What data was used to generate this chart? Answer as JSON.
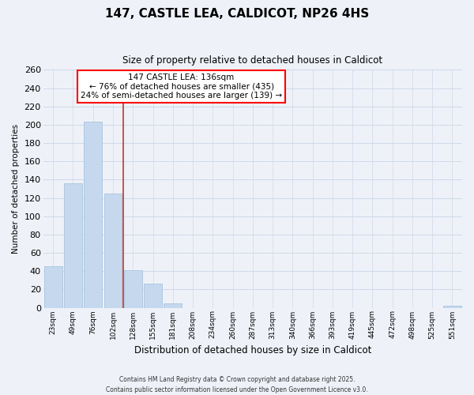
{
  "title": "147, CASTLE LEA, CALDICOT, NP26 4HS",
  "subtitle": "Size of property relative to detached houses in Caldicot",
  "xlabel": "Distribution of detached houses by size in Caldicot",
  "ylabel": "Number of detached properties",
  "bar_labels": [
    "23sqm",
    "49sqm",
    "76sqm",
    "102sqm",
    "128sqm",
    "155sqm",
    "181sqm",
    "208sqm",
    "234sqm",
    "260sqm",
    "287sqm",
    "313sqm",
    "340sqm",
    "366sqm",
    "393sqm",
    "419sqm",
    "445sqm",
    "472sqm",
    "498sqm",
    "525sqm",
    "551sqm"
  ],
  "bar_values": [
    45,
    136,
    203,
    125,
    41,
    26,
    5,
    0,
    0,
    0,
    0,
    0,
    0,
    0,
    0,
    0,
    0,
    0,
    0,
    0,
    2
  ],
  "bar_color": "#c5d8ee",
  "bar_edge_color": "#a8c4e0",
  "grid_color": "#d0d8e8",
  "background_color": "#eef2f8",
  "ylim": [
    0,
    260
  ],
  "yticks": [
    0,
    20,
    40,
    60,
    80,
    100,
    120,
    140,
    160,
    180,
    200,
    220,
    240,
    260
  ],
  "vline_color": "#c0392b",
  "annotation_title": "147 CASTLE LEA: 136sqm",
  "annotation_line1": "← 76% of detached houses are smaller (435)",
  "annotation_line2": "24% of semi-detached houses are larger (139) →",
  "footer_line1": "Contains HM Land Registry data © Crown copyright and database right 2025.",
  "footer_line2": "Contains public sector information licensed under the Open Government Licence v3.0."
}
